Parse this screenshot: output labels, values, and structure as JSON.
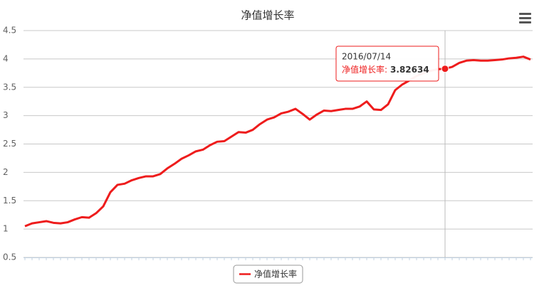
{
  "chart_data": {
    "type": "line",
    "title": "净值增长率",
    "categories": [
      null,
      null,
      null,
      null,
      null,
      null,
      null,
      null,
      null,
      null,
      null,
      null,
      null,
      null,
      null,
      null,
      null,
      null,
      null,
      null,
      null,
      null,
      null,
      null,
      null,
      null,
      null,
      null,
      null,
      null,
      null,
      null,
      null,
      null,
      null,
      null,
      null,
      null,
      null,
      null,
      null,
      null,
      null,
      null,
      null,
      null,
      null,
      null,
      null,
      null,
      null,
      null,
      null,
      null,
      null,
      null,
      null,
      null,
      null,
      "2016/07/14",
      null,
      null,
      null,
      null,
      null,
      null,
      null,
      null,
      null,
      null,
      null,
      null
    ],
    "series": [
      {
        "name": "净值增长率",
        "color": "#ee1c1c",
        "values": [
          1.05,
          1.1,
          1.12,
          1.14,
          1.11,
          1.1,
          1.12,
          1.17,
          1.21,
          1.2,
          1.28,
          1.4,
          1.65,
          1.78,
          1.8,
          1.86,
          1.9,
          1.93,
          1.93,
          1.97,
          2.07,
          2.15,
          2.24,
          2.3,
          2.37,
          2.4,
          2.48,
          2.54,
          2.55,
          2.63,
          2.71,
          2.7,
          2.75,
          2.85,
          2.93,
          2.97,
          3.04,
          3.07,
          3.12,
          3.03,
          2.93,
          3.02,
          3.09,
          3.08,
          3.1,
          3.12,
          3.12,
          3.16,
          3.25,
          3.11,
          3.1,
          3.2,
          3.45,
          3.55,
          3.62,
          3.7,
          3.75,
          3.79,
          3.82,
          3.82634,
          3.86,
          3.93,
          3.97,
          3.98,
          3.97,
          3.97,
          3.98,
          3.99,
          4.01,
          4.02,
          4.04,
          3.99
        ]
      }
    ],
    "ylim": [
      0.5,
      4.5
    ],
    "yticks": [
      0.5,
      1,
      1.5,
      2,
      2.5,
      3,
      3.5,
      4,
      4.5
    ],
    "grid": true,
    "tooltip": {
      "label": "净值增长率:"
    }
  }
}
